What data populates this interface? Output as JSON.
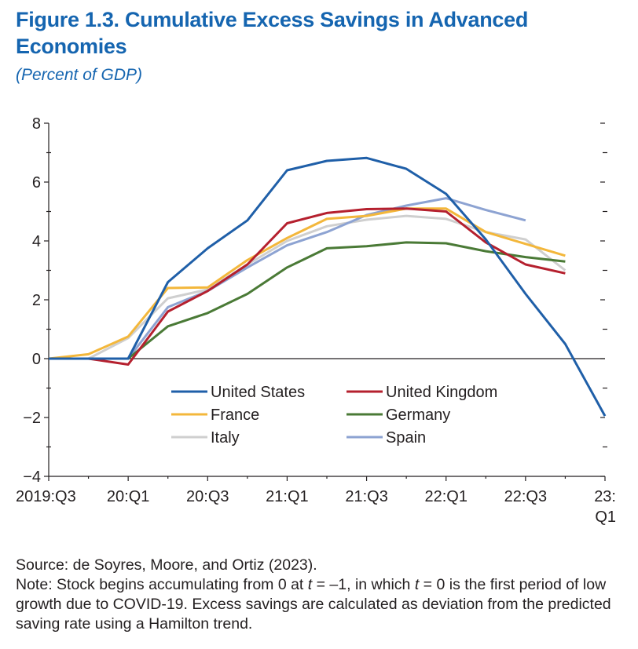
{
  "figure": {
    "title": "Figure 1.3.  Cumulative Excess Savings in Advanced Economies",
    "subtitle": "(Percent of GDP)"
  },
  "chart_data": {
    "type": "line",
    "title": "Cumulative Excess Savings in Advanced Economies",
    "ylabel": "Percent of GDP",
    "xlabel": "",
    "ylim": [
      -4,
      8
    ],
    "yticks": [
      -4,
      -2,
      0,
      2,
      4,
      6,
      8
    ],
    "ytick_labels": [
      "−4",
      "−2",
      "0",
      "2",
      "4",
      "6",
      "8"
    ],
    "x_periods": [
      "2019:Q3",
      "2019:Q4",
      "20:Q1",
      "20:Q2",
      "20:Q3",
      "20:Q4",
      "21:Q1",
      "21:Q2",
      "21:Q3",
      "21:Q4",
      "22:Q1",
      "22:Q2",
      "22:Q3",
      "22:Q4",
      "23:Q1"
    ],
    "x_tick_labels": [
      {
        "index": 0,
        "label": "2019:Q3"
      },
      {
        "index": 2,
        "label": "20:Q1"
      },
      {
        "index": 4,
        "label": "20:Q3"
      },
      {
        "index": 6,
        "label": "21:Q1"
      },
      {
        "index": 8,
        "label": "21:Q3"
      },
      {
        "index": 10,
        "label": "22:Q1"
      },
      {
        "index": 12,
        "label": "22:Q3"
      },
      {
        "index": 14,
        "label": "23:",
        "label2": "Q1"
      }
    ],
    "series": [
      {
        "name": "United States",
        "color": "#1f5fa8",
        "x": [
          0,
          1,
          2,
          3,
          4,
          5,
          6,
          7,
          8,
          9,
          10,
          11,
          12,
          13,
          14
        ],
        "values": [
          0,
          0,
          0,
          2.6,
          3.75,
          4.7,
          6.4,
          6.72,
          6.82,
          6.45,
          5.6,
          4.05,
          2.2,
          0.5,
          -1.95
        ]
      },
      {
        "name": "United Kingdom",
        "color": "#b5202e",
        "x": [
          0,
          1,
          2,
          3,
          4,
          5,
          6,
          7,
          8,
          9,
          10,
          11,
          12,
          13
        ],
        "values": [
          0,
          0,
          -0.2,
          1.6,
          2.3,
          3.2,
          4.6,
          4.95,
          5.08,
          5.1,
          5.0,
          3.95,
          3.2,
          2.9
        ]
      },
      {
        "name": "France",
        "color": "#f3b73b",
        "x": [
          0,
          1,
          2,
          3,
          4,
          5,
          6,
          7,
          8,
          9,
          10,
          11,
          12,
          13
        ],
        "values": [
          0,
          0.15,
          0.75,
          2.4,
          2.42,
          3.35,
          4.1,
          4.75,
          4.85,
          5.1,
          5.1,
          4.3,
          3.9,
          3.5
        ]
      },
      {
        "name": "Germany",
        "color": "#4a7a36",
        "x": [
          0,
          1,
          2,
          3,
          4,
          5,
          6,
          7,
          8,
          9,
          10,
          11,
          12,
          13
        ],
        "values": [
          0,
          0,
          0,
          1.1,
          1.55,
          2.2,
          3.1,
          3.75,
          3.82,
          3.95,
          3.92,
          3.65,
          3.45,
          3.3
        ]
      },
      {
        "name": "Italy",
        "color": "#cfcfcf",
        "x": [
          0,
          1,
          2,
          3,
          4,
          5,
          6,
          7,
          8,
          9,
          10,
          11,
          12,
          13
        ],
        "values": [
          0,
          0,
          0.7,
          2.05,
          2.35,
          3.2,
          4.0,
          4.5,
          4.72,
          4.85,
          4.75,
          4.3,
          4.05,
          3.0
        ]
      },
      {
        "name": "Spain",
        "color": "#8da3d2",
        "x": [
          0,
          1,
          2,
          3,
          4,
          5,
          6,
          7,
          8,
          9,
          10,
          11,
          12
        ],
        "values": [
          0,
          0,
          0,
          1.75,
          2.3,
          3.1,
          3.85,
          4.3,
          4.88,
          5.2,
          5.45,
          5.05,
          4.7
        ]
      }
    ],
    "legend_placement": "lower-center, inside plot"
  },
  "footer": {
    "source": "Source: de Soyres, Moore, and Ortiz (2023).",
    "note_parts": [
      "Note: Stock begins accumulating from 0 at ",
      "t",
      " = –1, in which ",
      "t",
      " = 0 is the first period of low growth due to COVID-19. Excess savings are calculated as deviation from the predicted saving rate using a Hamilton trend."
    ]
  }
}
